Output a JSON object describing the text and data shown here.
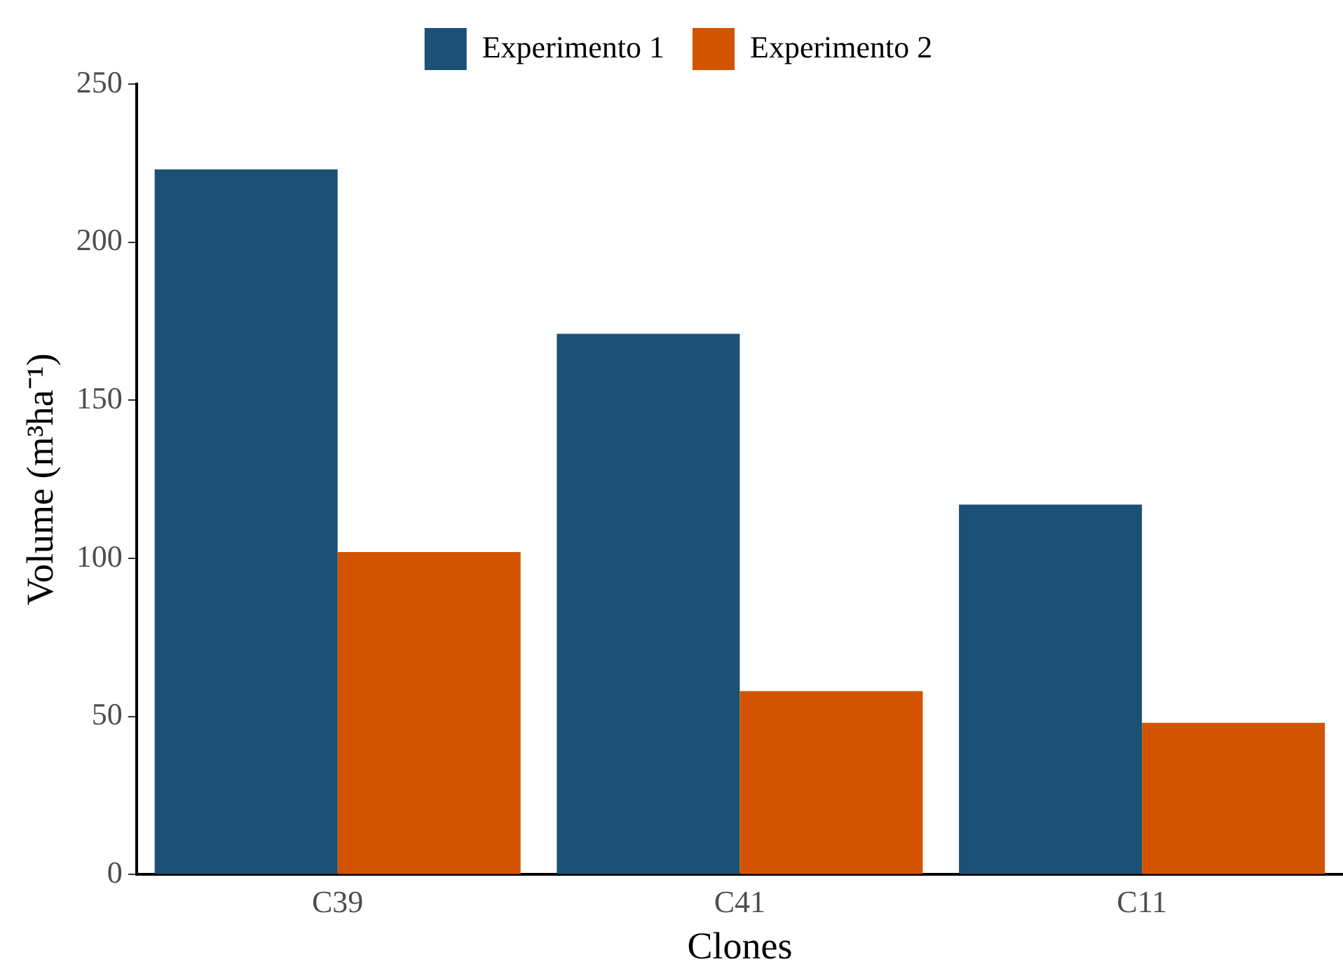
{
  "chart_data": {
    "type": "bar",
    "xlabel": "Clones",
    "ylabel": "Volume (m³ha⁻¹)",
    "categories": [
      "C39",
      "C41",
      "C11"
    ],
    "series": [
      {
        "name": "Experimento 1",
        "color": "#1b5174",
        "values": [
          223,
          171,
          117
        ]
      },
      {
        "name": "Experimento 2",
        "color": "#d35400",
        "values": [
          102,
          58,
          48
        ]
      }
    ],
    "ylim": [
      0,
      250
    ],
    "yticks": [
      0,
      50,
      100,
      150,
      200,
      250
    ],
    "grid": false,
    "legend": "top"
  }
}
